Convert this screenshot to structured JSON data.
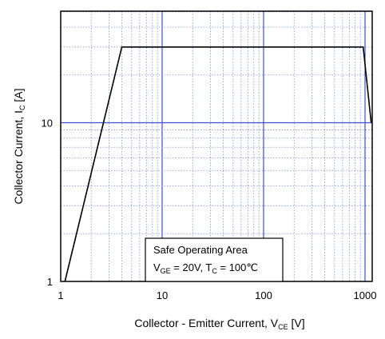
{
  "chart_data": {
    "type": "line",
    "title": "",
    "xscale": "log",
    "yscale": "log",
    "xlim": [
      1,
      1000
    ],
    "ylim": [
      1,
      30
    ],
    "xticks": [
      1,
      10,
      100,
      1000
    ],
    "xtick_labels": [
      "1",
      "10",
      "100",
      "1000"
    ],
    "yticks": [
      1,
      10
    ],
    "ytick_labels": [
      "1",
      "10"
    ],
    "xlabel": {
      "main": "Collector - Emitter Current, V",
      "sub": "CE",
      "unit": " [V]"
    },
    "ylabel": {
      "main": "Collector Current, I",
      "sub": "C",
      "unit": " [A]"
    },
    "grid": {
      "major": true,
      "minor": true,
      "major_color": "#3c4fcf",
      "minor_color": "#7f8fe0"
    },
    "series": [
      {
        "color": "#000000",
        "x": [
          1.1,
          4.0,
          960,
          1150
        ],
        "y": [
          1.0,
          30.0,
          30.0,
          10.0
        ]
      }
    ],
    "legend_box": {
      "placement": "bottom-center",
      "lines": [
        {
          "segments": [
            {
              "t": "Safe Operating Area",
              "sub": false
            }
          ]
        },
        {
          "segments": [
            {
              "t": "V",
              "sub": false
            },
            {
              "t": "GE",
              "sub": true
            },
            {
              "t": " = 20V, T",
              "sub": false
            },
            {
              "t": "C",
              "sub": true
            },
            {
              "t": " = 100℃",
              "sub": false
            }
          ]
        }
      ]
    }
  }
}
